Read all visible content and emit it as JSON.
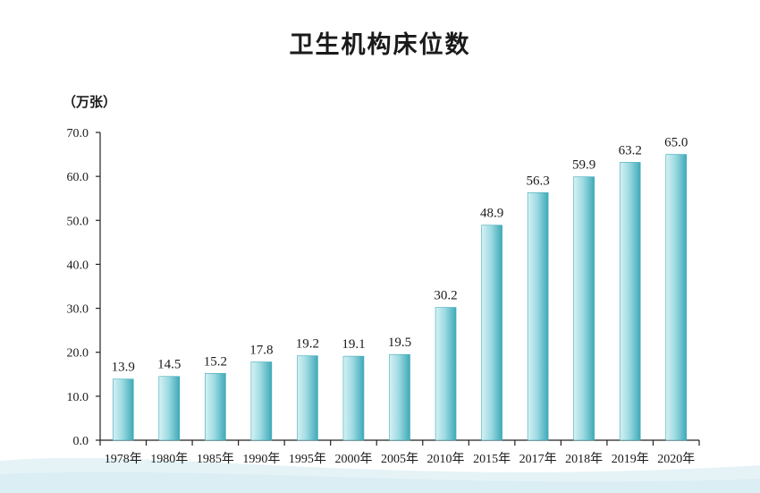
{
  "title": "卫生机构床位数",
  "unit_label": "（万张）",
  "colors": {
    "bar_light": "#d6f1f4",
    "bar_mid": "#9edbe2",
    "bar_dark": "#3fa9b8",
    "axis": "#222222",
    "wave": "#cfe9f1"
  },
  "chart_data": {
    "type": "bar",
    "title": "卫生机构床位数",
    "ylabel": "（万张）",
    "xlabel": "",
    "categories": [
      "1978年",
      "1980年",
      "1985年",
      "1990年",
      "1995年",
      "2000年",
      "2005年",
      "2010年",
      "2015年",
      "2017年",
      "2018年",
      "2019年",
      "2020年"
    ],
    "values": [
      13.9,
      14.5,
      15.2,
      17.8,
      19.2,
      19.1,
      19.5,
      30.2,
      48.9,
      56.3,
      59.9,
      63.2,
      65.0
    ],
    "value_labels": [
      "13.9",
      "14.5",
      "15.2",
      "17.8",
      "19.2",
      "19.1",
      "19.5",
      "30.2",
      "48.9",
      "56.3",
      "59.9",
      "63.2",
      "65.0"
    ],
    "ylim": [
      0,
      70
    ],
    "yticks": [
      "0.0",
      "10.0",
      "20.0",
      "30.0",
      "40.0",
      "50.0",
      "60.0",
      "70.0"
    ],
    "grid": false,
    "legend": "none"
  }
}
